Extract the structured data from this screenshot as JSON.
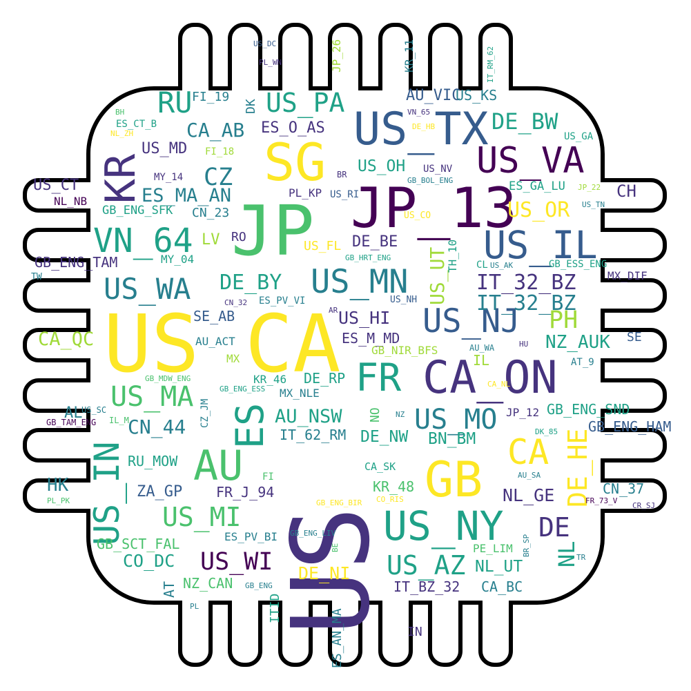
{
  "palette": {
    "purple": "#440154",
    "indigo": "#46337e",
    "blue": "#365c8d",
    "teal": "#277f8e",
    "green": "#1fa187",
    "lime": "#4ac16d",
    "yellowgreen": "#a0da39",
    "yellow": "#fde725",
    "outline": "#000000"
  },
  "words": [
    {
      "text": "US"
    },
    {
      "text": "CA"
    },
    {
      "text": "US"
    },
    {
      "text": "JP"
    },
    {
      "text": "JP_13"
    },
    {
      "text": "SG"
    },
    {
      "text": "US_TX"
    },
    {
      "text": "CA_ON"
    },
    {
      "text": "GB"
    },
    {
      "text": "US_IL"
    },
    {
      "text": "US_VA"
    },
    {
      "text": "KR"
    },
    {
      "text": "ES"
    },
    {
      "text": "US_IN"
    },
    {
      "text": "AU"
    },
    {
      "text": "US_NY"
    },
    {
      "text": "FR"
    },
    {
      "text": "VN_64"
    },
    {
      "text": "US_NJ"
    },
    {
      "text": "US_MN"
    },
    {
      "text": "US_WA"
    },
    {
      "text": "US_MA"
    },
    {
      "text": "US_MI"
    },
    {
      "text": "CA"
    },
    {
      "text": "US_MO"
    },
    {
      "text": "RU"
    },
    {
      "text": "US_PA"
    },
    {
      "text": "DE_HE"
    },
    {
      "text": "US_AZ"
    },
    {
      "text": "US_WI"
    },
    {
      "text": "IT_32_BZ"
    },
    {
      "text": "DE"
    },
    {
      "text": "CZ"
    },
    {
      "text": "DE_BW"
    },
    {
      "text": "PH"
    },
    {
      "text": "ES_MA_AN"
    },
    {
      "text": "CN_44"
    },
    {
      "text": "DE_BY"
    },
    {
      "text": "US_OR"
    },
    {
      "text": "CA_AB"
    },
    {
      "text": "US_MD"
    },
    {
      "text": "CA_QC"
    },
    {
      "text": "ES_O_AS"
    },
    {
      "text": "AU_VIC"
    },
    {
      "text": "US_HI"
    },
    {
      "text": "US_UT"
    },
    {
      "text": "NZ_AUK"
    },
    {
      "text": "AU_NSW"
    },
    {
      "text": "NL_GE"
    },
    {
      "text": "DE_NI"
    },
    {
      "text": "CO_DC"
    },
    {
      "text": "CN_37"
    },
    {
      "text": "US_CT"
    },
    {
      "text": "DE_BE"
    },
    {
      "text": "DE_NW"
    },
    {
      "text": "BN_BM"
    },
    {
      "text": "NL_UT"
    },
    {
      "text": "US_OH"
    },
    {
      "text": "US_KS"
    },
    {
      "text": "IT_62_RM"
    },
    {
      "text": "IT_BZ_32"
    },
    {
      "text": "ZA_GP"
    },
    {
      "text": "CH"
    },
    {
      "text": "GB_ENG_SND"
    },
    {
      "text": "RU_MOW"
    },
    {
      "text": "GB_ENG_TAM"
    },
    {
      "text": "SE_AB"
    },
    {
      "text": "ES_M_MD"
    },
    {
      "text": "FR_J_94"
    },
    {
      "text": "CA_BC"
    },
    {
      "text": "ES_AN_MA"
    },
    {
      "text": "NZ_CAN"
    },
    {
      "text": "GB_SCT_FAL"
    },
    {
      "text": "NL"
    },
    {
      "text": "KR_48"
    },
    {
      "text": "GB_ENG_HAM"
    },
    {
      "text": "HK"
    },
    {
      "text": "DE_RP"
    },
    {
      "text": "GB_ENG_SFK"
    },
    {
      "text": "ES_GA_LU"
    },
    {
      "text": "US_NV"
    },
    {
      "text": "CN_23"
    },
    {
      "text": "TH_10"
    },
    {
      "text": "PL_KP"
    },
    {
      "text": "US_FL"
    },
    {
      "text": "MX_NLE"
    },
    {
      "text": "IT_32_BZ"
    },
    {
      "text": "GB_ESS_ENG"
    },
    {
      "text": "LV"
    },
    {
      "text": "FI_19"
    },
    {
      "text": "DK"
    },
    {
      "text": "RO"
    },
    {
      "text": "MY_04"
    },
    {
      "text": "GB_NIR_BFS"
    },
    {
      "text": "AU_ACT"
    },
    {
      "text": "KR_11"
    },
    {
      "text": "CZ_JM"
    },
    {
      "text": "US_RI"
    },
    {
      "text": "ES_PV_VI"
    },
    {
      "text": "IN"
    },
    {
      "text": "NO"
    },
    {
      "text": "MX_DIF"
    },
    {
      "text": "IL"
    },
    {
      "text": "KR_46"
    },
    {
      "text": "SE"
    },
    {
      "text": "FI_18"
    },
    {
      "text": "ES_CT_B"
    },
    {
      "text": "US_GA"
    },
    {
      "text": "MY_14"
    },
    {
      "text": "PE_LIM"
    },
    {
      "text": "JP_26"
    },
    {
      "text": "ES_PV_BI"
    },
    {
      "text": "IT_RM_62"
    },
    {
      "text": "AT_9"
    },
    {
      "text": "AT"
    },
    {
      "text": "AL"
    },
    {
      "text": "JP_12"
    },
    {
      "text": "US_NH"
    },
    {
      "text": "MX"
    },
    {
      "text": "BR"
    },
    {
      "text": "ITID"
    },
    {
      "text": "NL_NB"
    },
    {
      "text": "CA_SK"
    },
    {
      "text": "AU_WA"
    },
    {
      "text": "GB_ENG_LIV"
    },
    {
      "text": "GB_ENG_BIR"
    },
    {
      "text": "GB_ENG_ESS"
    },
    {
      "text": "GB_MDW_ENG"
    },
    {
      "text": "GB_HRT_ENG"
    },
    {
      "text": "GB_BOL_ENG"
    },
    {
      "text": "GB_TAM_ENG"
    },
    {
      "text": "IL_M"
    },
    {
      "text": "US_SC"
    },
    {
      "text": "DK_85"
    },
    {
      "text": "AU_SA"
    },
    {
      "text": "FR_73_V"
    },
    {
      "text": "CR_SJ"
    },
    {
      "text": "CO_RIS"
    },
    {
      "text": "BR_SP"
    },
    {
      "text": "BE"
    },
    {
      "text": "GB_ENG"
    },
    {
      "text": "US_DC"
    },
    {
      "text": "PL_WN"
    },
    {
      "text": "VN_65"
    },
    {
      "text": "DE_HB"
    },
    {
      "text": "BH"
    },
    {
      "text": "NL_ZH"
    },
    {
      "text": "JP_22"
    },
    {
      "text": "US_TN"
    },
    {
      "text": "US_AK"
    },
    {
      "text": "CL"
    },
    {
      "text": "TW"
    },
    {
      "text": "CN_32"
    },
    {
      "text": "AR"
    },
    {
      "text": "HU"
    },
    {
      "text": "CA_NL"
    },
    {
      "text": "NZ"
    },
    {
      "text": "US_CO"
    },
    {
      "text": "PL_PK"
    },
    {
      "text": "TR"
    },
    {
      "text": "PL"
    },
    {
      "text": "FI"
    }
  ]
}
